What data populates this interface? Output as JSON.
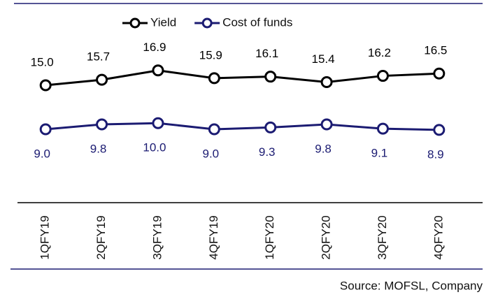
{
  "chart_data": {
    "type": "line",
    "categories": [
      "1QFY19",
      "2QFY19",
      "3QFY19",
      "4QFY19",
      "1QFY20",
      "2QFY20",
      "3QFY20",
      "4QFY20"
    ],
    "series": [
      {
        "name": "Yield",
        "color": "#000000",
        "values": [
          15.0,
          15.7,
          16.9,
          15.9,
          16.1,
          15.4,
          16.2,
          16.5
        ],
        "value_labels": [
          "15.0",
          "15.7",
          "16.9",
          "15.9",
          "16.1",
          "15.4",
          "16.2",
          "16.5"
        ]
      },
      {
        "name": "Cost of funds",
        "color": "#1b1b72",
        "axis": "y2",
        "values": [
          9.0,
          9.8,
          10.0,
          9.0,
          9.3,
          9.8,
          9.1,
          8.9
        ],
        "value_labels": [
          "9.0",
          "9.8",
          "10.0",
          "9.0",
          "9.3",
          "9.8",
          "9.1",
          "8.9"
        ]
      }
    ],
    "ylim": [
      0,
      25
    ],
    "y2lim": [
      -3,
      29
    ],
    "legend": "top",
    "source": "Source: MOFSL, Company"
  }
}
